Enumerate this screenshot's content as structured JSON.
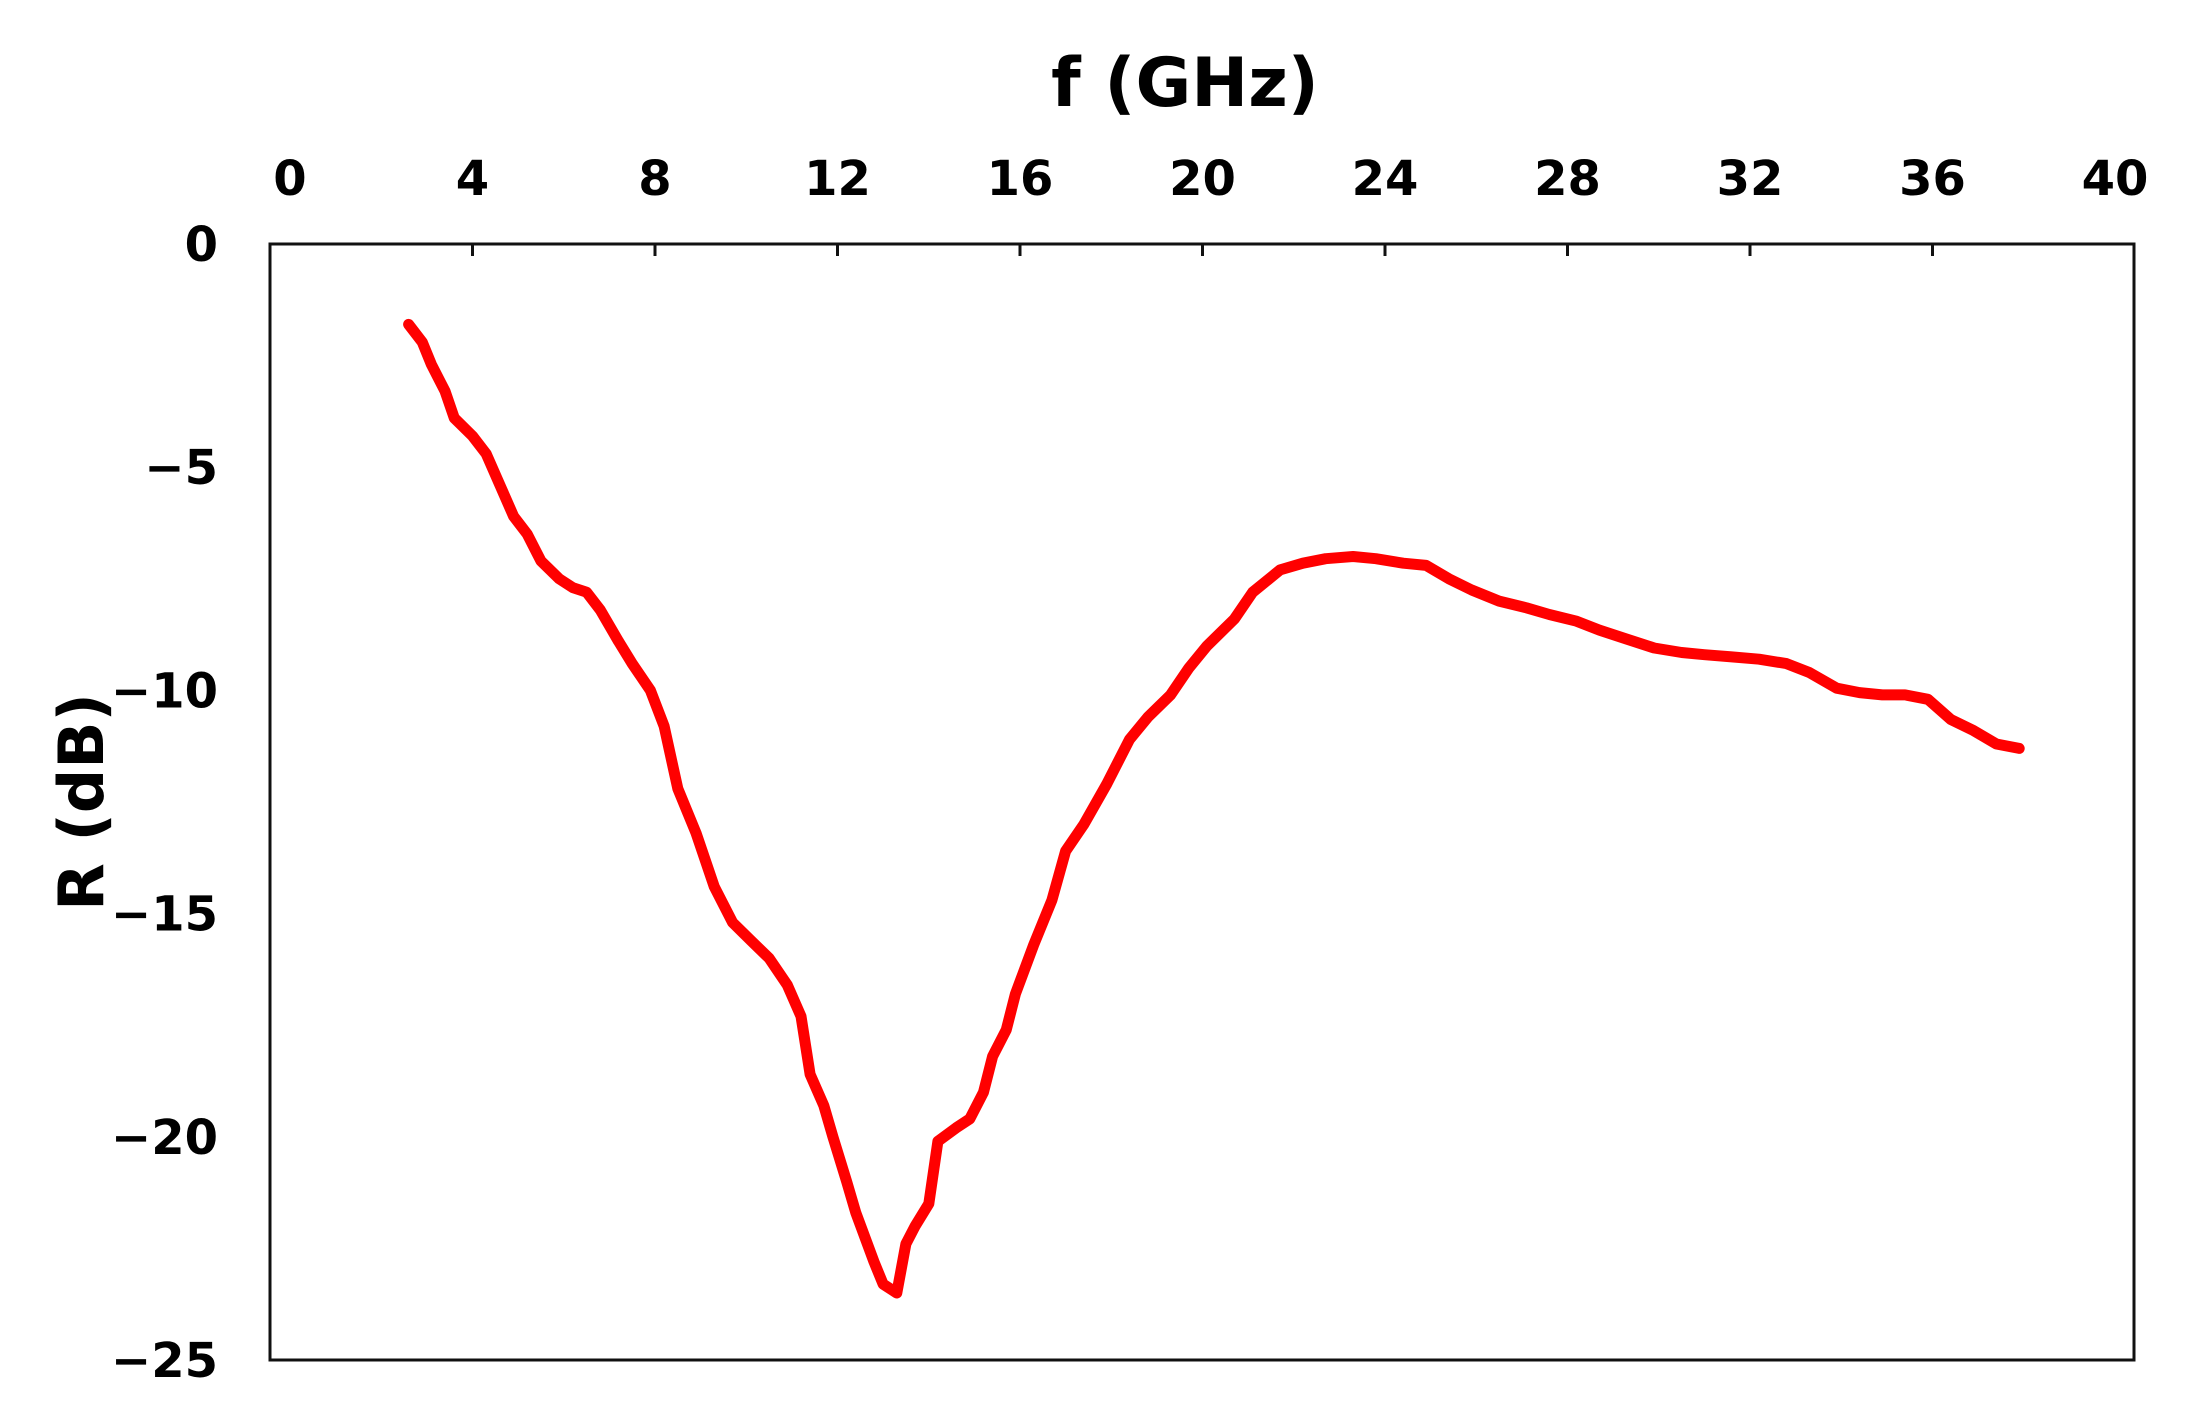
{
  "chart_data": {
    "type": "line",
    "title": "",
    "xlabel": "f (GHz)",
    "ylabel": "R (dB)",
    "x_axis_position": "top",
    "xlim": [
      0,
      40
    ],
    "ylim": [
      -25,
      0
    ],
    "x_ticks": [
      "0",
      "4",
      "8",
      "12",
      "16",
      "20",
      "24",
      "28",
      "32",
      "36",
      "40"
    ],
    "y_ticks": [
      "0",
      "-5",
      "-10",
      "-15",
      "-20",
      "-25"
    ],
    "grid": false,
    "legend": "none",
    "series": [
      {
        "color": "#ff0000",
        "x": [
          2.6,
          2.9,
          3.1,
          3.4,
          3.6,
          4.0,
          4.3,
          4.6,
          4.9,
          5.2,
          5.5,
          5.9,
          6.2,
          6.5,
          6.8,
          7.2,
          7.5,
          7.9,
          8.2,
          8.5,
          8.9,
          9.3,
          9.7,
          10.1,
          10.5,
          10.9,
          11.2,
          11.4,
          11.7,
          11.9,
          12.2,
          12.4,
          12.8,
          13.0,
          13.3,
          13.5,
          13.7,
          14.0,
          14.2,
          14.6,
          14.9,
          15.2,
          15.4,
          15.7,
          15.9,
          16.3,
          16.7,
          17.0,
          17.4,
          17.9,
          18.4,
          18.8,
          19.3,
          19.7,
          20.1,
          20.7,
          21.1,
          21.7,
          22.2,
          22.7,
          23.3,
          23.8,
          24.4,
          24.9,
          25.4,
          25.9,
          26.5,
          27.1,
          27.6,
          28.2,
          28.7,
          29.3,
          29.9,
          30.5,
          31.0,
          31.6,
          32.2,
          32.8,
          33.3,
          33.9,
          34.4,
          34.9,
          35.4,
          35.9,
          36.4,
          36.9,
          37.4,
          37.9
        ],
        "values": [
          -1.8,
          -2.2,
          -2.7,
          -3.3,
          -3.9,
          -4.3,
          -4.7,
          -5.4,
          -6.1,
          -6.5,
          -7.1,
          -7.5,
          -7.7,
          -7.8,
          -8.2,
          -8.9,
          -9.4,
          -10.0,
          -10.8,
          -12.2,
          -13.2,
          -14.4,
          -15.2,
          -15.6,
          -16.0,
          -16.6,
          -17.3,
          -18.6,
          -19.3,
          -20.0,
          -21.0,
          -21.7,
          -22.8,
          -23.3,
          -23.5,
          -22.4,
          -22.0,
          -21.5,
          -20.1,
          -19.8,
          -19.6,
          -19.0,
          -18.2,
          -17.6,
          -16.8,
          -15.7,
          -14.7,
          -13.6,
          -13.0,
          -12.1,
          -11.1,
          -10.6,
          -10.1,
          -9.5,
          -9.0,
          -8.4,
          -7.8,
          -7.3,
          -7.15,
          -7.05,
          -7.0,
          -7.05,
          -7.15,
          -7.2,
          -7.5,
          -7.75,
          -8.0,
          -8.15,
          -8.3,
          -8.45,
          -8.65,
          -8.85,
          -9.05,
          -9.15,
          -9.2,
          -9.25,
          -9.3,
          -9.4,
          -9.6,
          -9.95,
          -10.05,
          -10.1,
          -10.1,
          -10.2,
          -10.65,
          -10.9,
          -11.2,
          -11.3
        ]
      }
    ]
  }
}
